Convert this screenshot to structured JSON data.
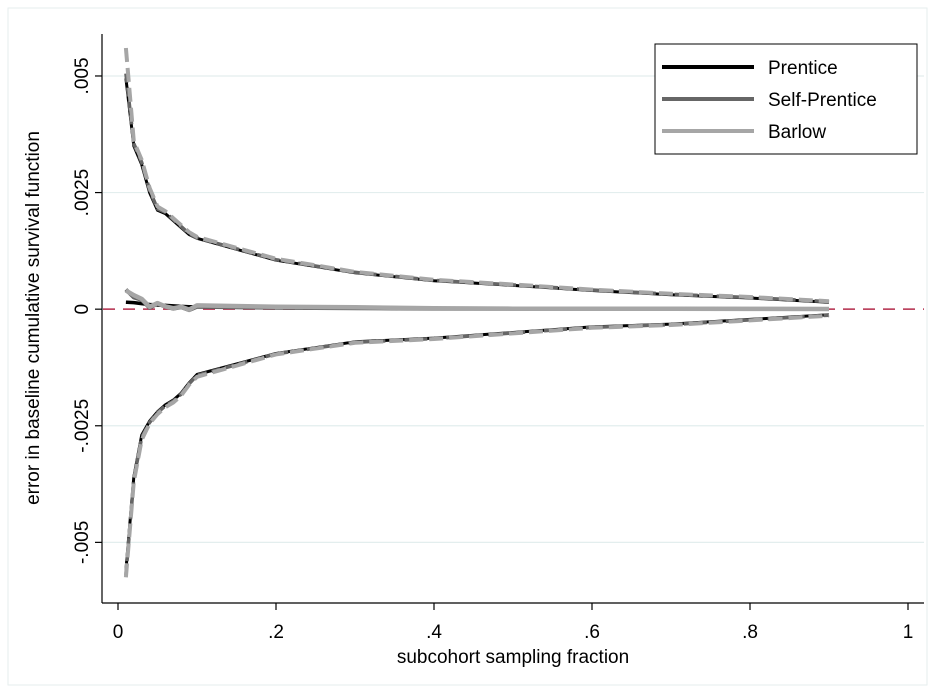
{
  "chart_data": {
    "type": "line",
    "title": "",
    "xlabel": "subcohort sampling fraction",
    "ylabel": "error in baseline cumulative survival function",
    "xlim": [
      0,
      1
    ],
    "ylim": [
      -0.0063,
      0.0059
    ],
    "x_ticks": [
      0,
      0.2,
      0.4,
      0.6,
      0.8,
      1
    ],
    "x_tick_labels": [
      "0",
      ".2",
      ".4",
      ".6",
      ".8",
      "1"
    ],
    "y_ticks": [
      -0.005,
      -0.0025,
      0,
      0.0025,
      0.005
    ],
    "y_tick_labels": [
      "-.005",
      "-.0025",
      "0",
      ".0025",
      ".005"
    ],
    "grid": "horizontal",
    "reference_line": {
      "y": 0,
      "color": "#b22b4a",
      "style": "dashed"
    },
    "legend_position": "top-right",
    "x": [
      0.01,
      0.02,
      0.03,
      0.04,
      0.05,
      0.06,
      0.07,
      0.08,
      0.09,
      0.1,
      0.2,
      0.3,
      0.4,
      0.5,
      0.6,
      0.7,
      0.8,
      0.9
    ],
    "series": [
      {
        "name": "Prentice",
        "color": "#000000",
        "mean": [
          0.00015,
          0.00014,
          0.00012,
          0.0001,
          9e-05,
          8e-05,
          7e-05,
          6e-05,
          5e-05,
          5e-05,
          3e-05,
          2e-05,
          1.5e-05,
          1e-05,
          1e-05,
          8e-06,
          5e-06,
          3e-06
        ],
        "upper": [
          0.00495,
          0.0035,
          0.0031,
          0.0025,
          0.00212,
          0.00205,
          0.0019,
          0.00175,
          0.0016,
          0.00152,
          0.00105,
          0.00078,
          0.00061,
          0.00051,
          0.0004,
          0.00031,
          0.00024,
          0.00015
        ],
        "lower": [
          -0.0056,
          -0.0036,
          -0.0027,
          -0.0024,
          -0.0022,
          -0.00205,
          -0.00195,
          -0.0018,
          -0.00158,
          -0.0014,
          -0.00095,
          -0.0007,
          -0.00062,
          -0.0005,
          -0.00038,
          -0.00032,
          -0.00022,
          -0.00012
        ]
      },
      {
        "name": "Self-Prentice",
        "color": "#666666",
        "mean": [
          0.00042,
          0.00025,
          0.0002,
          3e-05,
          0.00012,
          5e-05,
          1e-05,
          4e-05,
          -2e-05,
          5e-05,
          3e-05,
          2e-05,
          1e-05,
          1e-05,
          1e-05,
          8e-06,
          5e-06,
          3e-06
        ],
        "upper": [
          0.00505,
          0.00355,
          0.00315,
          0.00255,
          0.00215,
          0.00208,
          0.00192,
          0.00177,
          0.00162,
          0.00153,
          0.00106,
          0.00079,
          0.00062,
          0.00052,
          0.00041,
          0.00032,
          0.00025,
          0.00016
        ],
        "lower": [
          -0.0057,
          -0.00365,
          -0.00275,
          -0.00243,
          -0.00222,
          -0.00207,
          -0.00197,
          -0.00182,
          -0.0016,
          -0.00142,
          -0.00096,
          -0.00071,
          -0.00063,
          -0.00051,
          -0.00039,
          -0.00033,
          -0.00023,
          -0.00013
        ]
      },
      {
        "name": "Barlow",
        "color": "#a6a6a6",
        "mean": [
          0.0004,
          0.0003,
          0.00022,
          5e-05,
          0.00013,
          6e-05,
          2e-05,
          5e-05,
          -1e-05,
          8e-05,
          5e-05,
          4e-05,
          2e-05,
          1e-05,
          1e-05,
          1e-05,
          5e-06,
          3e-06
        ],
        "upper": [
          0.0056,
          0.0036,
          0.0032,
          0.0026,
          0.0022,
          0.0021,
          0.00195,
          0.0018,
          0.00165,
          0.00155,
          0.00108,
          0.0008,
          0.00063,
          0.00053,
          0.00042,
          0.00033,
          0.00026,
          0.00017
        ],
        "lower": [
          -0.00575,
          -0.0037,
          -0.0028,
          -0.00245,
          -0.00225,
          -0.0021,
          -0.002,
          -0.00185,
          -0.00162,
          -0.00145,
          -0.00097,
          -0.00072,
          -0.00064,
          -0.00052,
          -0.0004,
          -0.00034,
          -0.00024,
          -0.00014
        ]
      }
    ]
  }
}
